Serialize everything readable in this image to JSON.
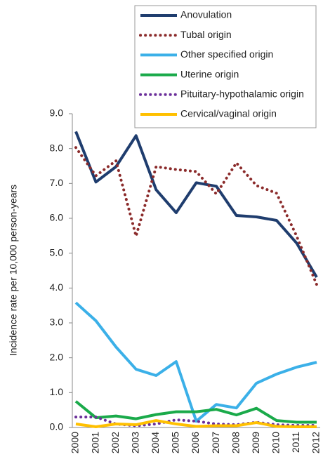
{
  "chart_data": {
    "type": "line",
    "y_label": "Incidence rate per 10,000 person-years",
    "categories": [
      "2000",
      "2001",
      "2002",
      "2003",
      "2004",
      "2005",
      "2006",
      "2007",
      "2008",
      "2009",
      "2010",
      "2011",
      "2012"
    ],
    "series": [
      {
        "name": "Anovulation",
        "color": "#1f3d6e",
        "style": "solid",
        "values": [
          8.49,
          7.04,
          7.48,
          8.37,
          6.82,
          6.16,
          7.02,
          6.92,
          6.08,
          6.04,
          5.94,
          5.29,
          4.31
        ]
      },
      {
        "name": "Tubal origin",
        "color": "#8b2b2b",
        "style": "dotted",
        "values": [
          8.03,
          7.22,
          7.65,
          5.49,
          7.48,
          7.4,
          7.34,
          6.7,
          7.59,
          6.94,
          6.72,
          5.49,
          4.1
        ]
      },
      {
        "name": "Other specified origin",
        "color": "#3bb0e8",
        "style": "solid",
        "values": [
          3.58,
          3.06,
          2.31,
          1.67,
          1.49,
          1.89,
          0.18,
          0.66,
          0.56,
          1.27,
          1.53,
          1.73,
          1.87
        ]
      },
      {
        "name": "Uterine origin",
        "color": "#1aaa4a",
        "style": "solid",
        "values": [
          0.75,
          0.28,
          0.33,
          0.25,
          0.37,
          0.45,
          0.45,
          0.52,
          0.36,
          0.55,
          0.2,
          0.15,
          0.15
        ]
      },
      {
        "name": "Pituitary-hypothalamic origin",
        "color": "#6b2f9a",
        "style": "dotted",
        "values": [
          0.3,
          0.3,
          0.1,
          0.05,
          0.1,
          0.22,
          0.18,
          0.1,
          0.08,
          0.15,
          0.08,
          0.06,
          0.06
        ]
      },
      {
        "name": "Cervical/vaginal origin",
        "color": "#ffc000",
        "style": "solid",
        "values": [
          0.1,
          0.02,
          0.1,
          0.08,
          0.2,
          0.1,
          0.03,
          0.05,
          0.05,
          0.14,
          0.03,
          0.02,
          0.02
        ]
      }
    ],
    "ylim": [
      0,
      9
    ],
    "yticks": [
      {
        "value": 0,
        "label": "0.0"
      },
      {
        "value": 1,
        "label": "1.0"
      },
      {
        "value": 2,
        "label": "2.0"
      },
      {
        "value": 3,
        "label": "3.0"
      },
      {
        "value": 4,
        "label": "4.0"
      },
      {
        "value": 5,
        "label": "5.0"
      },
      {
        "value": 6,
        "label": "6.0"
      },
      {
        "value": 7,
        "label": "7.0"
      },
      {
        "value": 8,
        "label": "8.0"
      },
      {
        "value": 9,
        "label": "9.0"
      }
    ],
    "grid": false,
    "legend": "top-right"
  }
}
